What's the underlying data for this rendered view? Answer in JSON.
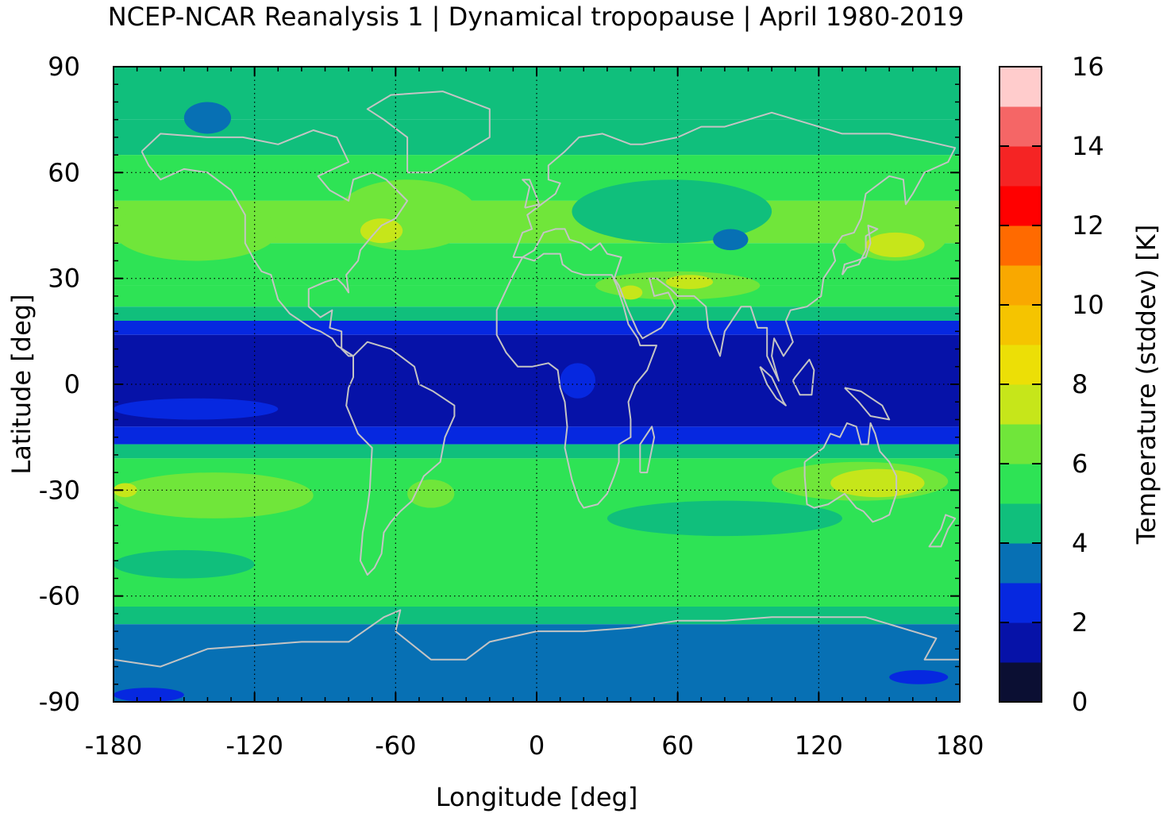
{
  "chart_data": {
    "type": "heatmap",
    "title": "NCEP-NCAR Reanalysis 1 | Dynamical tropopause | April 1980-2019",
    "xlabel": "Longitude [deg]",
    "ylabel": "Latitude [deg]",
    "xlim": [
      -180,
      180
    ],
    "ylim": [
      -90,
      90
    ],
    "xticks": [
      "-180",
      "-120",
      "-60",
      "0",
      "60",
      "120",
      "180"
    ],
    "yticks": [
      "90",
      "60",
      "30",
      "0",
      "-30",
      "-60",
      "-90"
    ],
    "grid": true,
    "colorbar": {
      "label": "Temperature (stddev) [K]",
      "range": [
        0,
        16
      ],
      "ticks": [
        "0",
        "2",
        "4",
        "6",
        "8",
        "10",
        "12",
        "14",
        "16"
      ],
      "colors": [
        "#0b0f33",
        "#0612a8",
        "#0628e0",
        "#0770b4",
        "#10bf7c",
        "#2ee355",
        "#70e63a",
        "#c6e61a",
        "#ecdf06",
        "#f5c400",
        "#f9a800",
        "#ff6a00",
        "#ff0000",
        "#f52424",
        "#f56666",
        "#ffcccc"
      ]
    },
    "zonal_bands": [
      {
        "lat": [
          75,
          90
        ],
        "value": 4.5
      },
      {
        "lat": [
          65,
          75
        ],
        "value": 4.7
      },
      {
        "lat": [
          52,
          65
        ],
        "value": 5.3
      },
      {
        "lat": [
          40,
          52
        ],
        "value": 6.2
      },
      {
        "lat": [
          28,
          40
        ],
        "value": 5.6
      },
      {
        "lat": [
          22,
          28
        ],
        "value": 5.2
      },
      {
        "lat": [
          18,
          22
        ],
        "value": 4.5
      },
      {
        "lat": [
          14,
          18
        ],
        "value": 2.5
      },
      {
        "lat": [
          -12,
          14
        ],
        "value": 1.5
      },
      {
        "lat": [
          -17,
          -12
        ],
        "value": 2.5
      },
      {
        "lat": [
          -21,
          -17
        ],
        "value": 4.5
      },
      {
        "lat": [
          -30,
          -21
        ],
        "value": 5.5
      },
      {
        "lat": [
          -45,
          -30
        ],
        "value": 5.6
      },
      {
        "lat": [
          -54,
          -45
        ],
        "value": 5.4
      },
      {
        "lat": [
          -63,
          -54
        ],
        "value": 5.3
      },
      {
        "lat": [
          -68,
          -63
        ],
        "value": 4.5
      },
      {
        "lat": [
          -90,
          -68
        ],
        "value": 3.5
      }
    ],
    "features": [
      {
        "lon": [
          -85,
          -25
        ],
        "lat": [
          38,
          58
        ],
        "value": 6.5
      },
      {
        "lon": [
          -75,
          -57
        ],
        "lat": [
          40,
          47
        ],
        "value": 7.5
      },
      {
        "lon": [
          -180,
          -110
        ],
        "lat": [
          35,
          52
        ],
        "value": 6.3
      },
      {
        "lon": [
          130,
          175
        ],
        "lat": [
          35,
          50
        ],
        "value": 6.3
      },
      {
        "lon": [
          140,
          165
        ],
        "lat": [
          36,
          43
        ],
        "value": 7.3
      },
      {
        "lon": [
          -150,
          -130
        ],
        "lat": [
          71,
          80
        ],
        "value": 3.5
      },
      {
        "lon": [
          15,
          100
        ],
        "lat": [
          40,
          58
        ],
        "value": 4.6
      },
      {
        "lon": [
          75,
          90
        ],
        "lat": [
          38,
          44
        ],
        "value": 3.5
      },
      {
        "lon": [
          25,
          95
        ],
        "lat": [
          24,
          32
        ],
        "value": 6.5
      },
      {
        "lon": [
          35,
          45
        ],
        "lat": [
          24,
          28
        ],
        "value": 7.2
      },
      {
        "lon": [
          55,
          75
        ],
        "lat": [
          27,
          31
        ],
        "value": 7.2
      },
      {
        "lon": [
          10,
          25
        ],
        "lat": [
          -4,
          6
        ],
        "value": 2.5
      },
      {
        "lon": [
          -180,
          -110
        ],
        "lat": [
          -10,
          -4
        ],
        "value": 2.5
      },
      {
        "lon": [
          100,
          175
        ],
        "lat": [
          -33,
          -22
        ],
        "value": 6.3
      },
      {
        "lon": [
          125,
          165
        ],
        "lat": [
          -32,
          -24
        ],
        "value": 7.3
      },
      {
        "lon": [
          -180,
          -95
        ],
        "lat": [
          -38,
          -25
        ],
        "value": 6.4
      },
      {
        "lon": [
          -180,
          -170
        ],
        "lat": [
          -32,
          -28
        ],
        "value": 7.3
      },
      {
        "lon": [
          -55,
          -35
        ],
        "lat": [
          -35,
          -27
        ],
        "value": 6.4
      },
      {
        "lon": [
          30,
          130
        ],
        "lat": [
          -43,
          -33
        ],
        "value": 4.6
      },
      {
        "lon": [
          -180,
          -120
        ],
        "lat": [
          -55,
          -47
        ],
        "value": 4.6
      },
      {
        "lon": [
          -180,
          -150
        ],
        "lat": [
          -90,
          -86
        ],
        "value": 2.5
      },
      {
        "lon": [
          150,
          175
        ],
        "lat": [
          -85,
          -81
        ],
        "value": 2.5
      }
    ],
    "overlays": [
      "coastlines",
      "grid"
    ]
  }
}
